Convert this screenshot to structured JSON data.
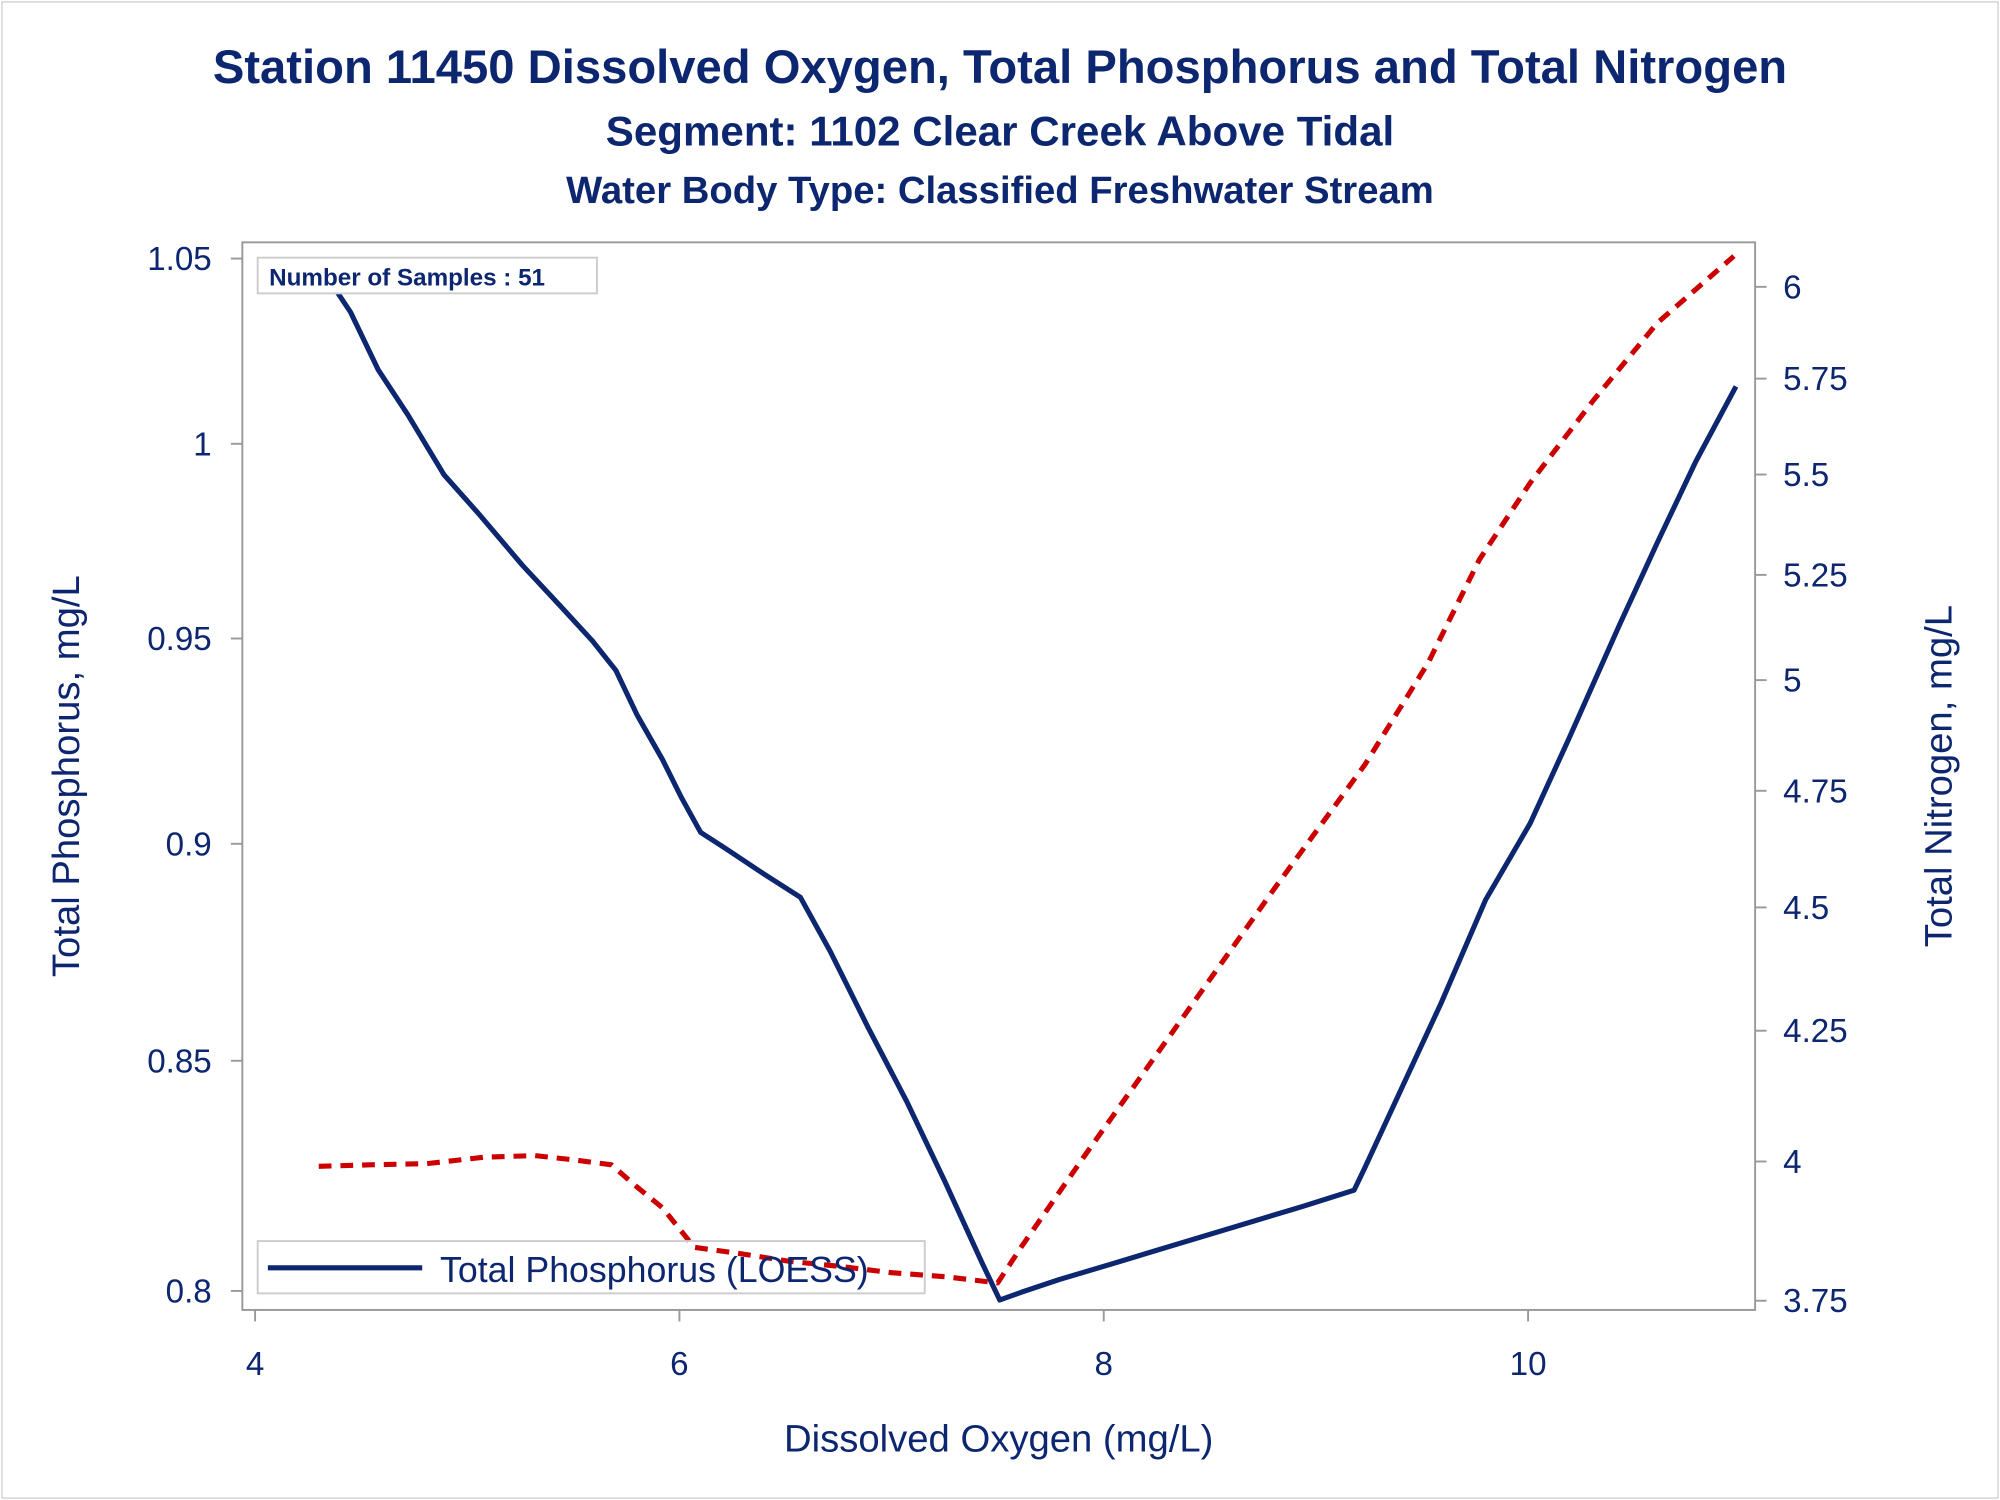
{
  "chart_data": {
    "type": "line",
    "title": "Station 11450  Dissolved Oxygen, Total Phosphorus and Total Nitrogen",
    "subtitle": "Segment: 1102  Clear Creek Above Tidal",
    "subtitle2": "Water Body Type: Classified Freshwater Stream",
    "xlabel": "Dissolved Oxygen (mg/L)",
    "ylabel": "Total Phosphorus, mg/L",
    "y2label": "Total Nitrogen, mg/L",
    "xlim": [
      3.94,
      11.07
    ],
    "ylim": [
      0.796,
      1.0545
    ],
    "y2lim": [
      3.734,
      6.125
    ],
    "yscale": "log",
    "y2scale": "log",
    "xticks": [
      4,
      6,
      8,
      10
    ],
    "yticks": [
      1.05,
      1,
      0.95,
      0.9,
      0.85,
      0.8
    ],
    "y2ticks": [
      6,
      5.75,
      5.5,
      5.25,
      5,
      4.75,
      4.5,
      4.25,
      4,
      3.75
    ],
    "grid": false,
    "annotation": "Number of Samples : 51",
    "legend": {
      "placement": "bottom-left",
      "entries": [
        "Total Phosphorus (LOESS)"
      ]
    },
    "colors": {
      "phosphorus": "#0c2670",
      "nitrogen": "#cc0000"
    },
    "series": [
      {
        "name": "Total Phosphorus (LOESS)",
        "axis": "left",
        "style": "solid",
        "x": [
          4.33,
          4.45,
          4.58,
          4.72,
          4.89,
          5.05,
          5.26,
          5.44,
          5.59,
          5.7,
          5.8,
          5.92,
          6.01,
          6.1,
          6.22,
          6.4,
          6.57,
          6.71,
          6.89,
          7.07,
          7.25,
          7.43,
          7.51,
          7.61,
          7.79,
          8.03,
          8.33,
          8.63,
          8.93,
          9.18,
          9.23,
          9.41,
          9.59,
          9.8,
          10.01,
          10.19,
          10.43,
          10.61,
          10.79,
          10.98
        ],
        "y": [
          1.0458,
          1.0353,
          1.0197,
          1.0077,
          0.9919,
          0.982,
          0.9685,
          0.9581,
          0.9494,
          0.9421,
          0.9311,
          0.9202,
          0.911,
          0.9027,
          0.8988,
          0.8928,
          0.8874,
          0.8749,
          0.8574,
          0.8411,
          0.8235,
          0.8056,
          0.7981,
          0.7997,
          0.8024,
          0.8056,
          0.8097,
          0.8138,
          0.8179,
          0.8215,
          0.8263,
          0.8445,
          0.863,
          0.8868,
          0.9049,
          0.925,
          0.9533,
          0.9744,
          0.9953,
          1.0152
        ]
      },
      {
        "axis": "right",
        "style": "dashed",
        "x": [
          4.3,
          4.54,
          4.81,
          5.08,
          5.32,
          5.5,
          5.68,
          5.8,
          5.92,
          6.07,
          6.28,
          6.52,
          6.76,
          7.0,
          7.25,
          7.5,
          7.61,
          7.91,
          8.21,
          8.51,
          8.81,
          9.23,
          9.53,
          9.77,
          10.01,
          10.31,
          10.61,
          10.97
        ],
        "y": [
          3.991,
          3.994,
          3.996,
          4.008,
          4.011,
          4.003,
          3.994,
          3.953,
          3.915,
          3.844,
          3.833,
          3.819,
          3.81,
          3.799,
          3.792,
          3.781,
          3.844,
          4.011,
          4.181,
          4.358,
          4.543,
          4.807,
          5.041,
          5.287,
          5.479,
          5.694,
          5.901,
          6.086
        ]
      }
    ]
  }
}
